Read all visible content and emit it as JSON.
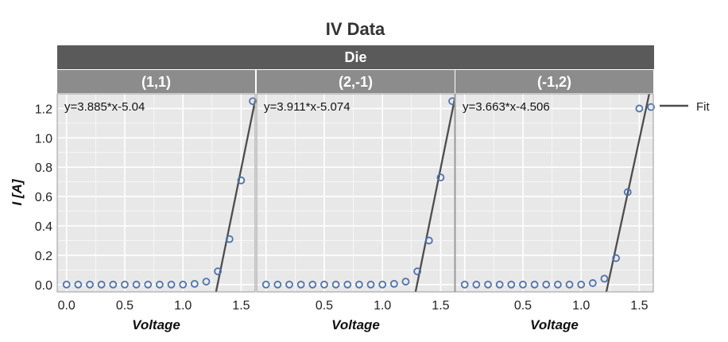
{
  "chart_data": {
    "type": "scatter",
    "title": "IV Data",
    "facet_header": "Die",
    "xlabel": "Voltage",
    "ylabel": "I [A]",
    "xlim": [
      -0.08,
      1.62
    ],
    "ylim": [
      -0.05,
      1.3
    ],
    "grid": true,
    "legend": {
      "position": "right",
      "entries": [
        "Fit"
      ]
    },
    "colors": {
      "points": "#4c72b0",
      "fit": "#4d4d4d",
      "panel_bg": "#e8e8e8",
      "grid": "#ffffff",
      "strip_top": "#5a5a5a",
      "strip_sub": "#8c8c8c"
    },
    "panels": [
      {
        "label": "(1,1)",
        "equation": "y=3.885*x-5.04",
        "fit": {
          "slope": 3.885,
          "intercept": -5.04
        },
        "x_ticks": [
          0.0,
          0.5,
          1.0,
          1.5
        ],
        "x_tick_labels": [
          "0.0",
          "0.5",
          "1.0",
          "1.5"
        ],
        "x": [
          0.0,
          0.1,
          0.2,
          0.3,
          0.4,
          0.5,
          0.6,
          0.7,
          0.8,
          0.9,
          1.0,
          1.1,
          1.2,
          1.3,
          1.4,
          1.5,
          1.6
        ],
        "y": [
          0.0,
          0.0,
          0.0,
          0.0,
          0.0,
          0.0,
          0.0,
          0.0,
          0.0,
          0.0,
          0.0,
          0.005,
          0.02,
          0.09,
          0.31,
          0.71,
          1.25
        ]
      },
      {
        "label": "(2,-1)",
        "equation": "y=3.911*x-5.074",
        "fit": {
          "slope": 3.911,
          "intercept": -5.074
        },
        "x_ticks": [
          0.5,
          1.0,
          1.5
        ],
        "x_tick_labels": [
          "0.5",
          "1.0",
          "1.5"
        ],
        "x": [
          0.0,
          0.1,
          0.2,
          0.3,
          0.4,
          0.5,
          0.6,
          0.7,
          0.8,
          0.9,
          1.0,
          1.1,
          1.2,
          1.3,
          1.4,
          1.5,
          1.6
        ],
        "y": [
          0.0,
          0.0,
          0.0,
          0.0,
          0.0,
          0.0,
          0.0,
          0.0,
          0.0,
          0.0,
          0.0,
          0.005,
          0.02,
          0.09,
          0.3,
          0.73,
          1.25
        ]
      },
      {
        "label": "(-1,2)",
        "equation": "y=3.663*x-4.506",
        "fit": {
          "slope": 3.663,
          "intercept": -4.506
        },
        "x_ticks": [
          0.5,
          1.0,
          1.5
        ],
        "x_tick_labels": [
          "0.5",
          "1.0",
          "1.5"
        ],
        "x": [
          0.0,
          0.1,
          0.2,
          0.3,
          0.4,
          0.5,
          0.6,
          0.7,
          0.8,
          0.9,
          1.0,
          1.1,
          1.2,
          1.3,
          1.4,
          1.5,
          1.6
        ],
        "y": [
          0.0,
          0.0,
          0.0,
          0.0,
          0.0,
          0.0,
          0.0,
          0.0,
          0.0,
          0.0,
          0.0,
          0.01,
          0.04,
          0.18,
          0.63,
          1.2,
          1.21
        ]
      }
    ],
    "y_ticks": [
      0.0,
      0.2,
      0.4,
      0.6,
      0.8,
      1.0,
      1.2
    ],
    "y_tick_labels": [
      "0.0",
      "0.2",
      "0.4",
      "0.6",
      "0.8",
      "1.0",
      "1.2"
    ]
  }
}
